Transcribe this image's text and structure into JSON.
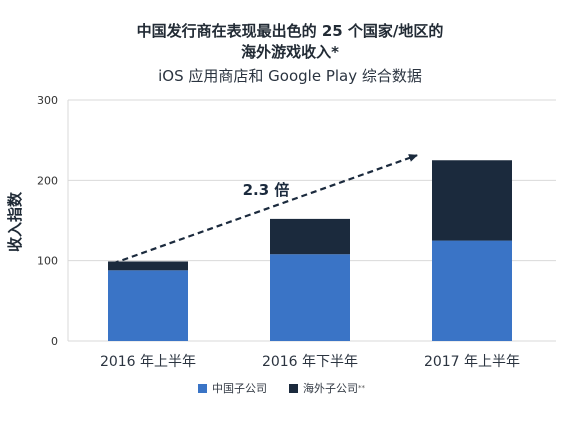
{
  "title_line1": "中国发行商在表现最出色的 25 个国家/地区的",
  "title_line2": "海外游戏收入*",
  "subtitle": "iOS 应用商店和 Google Play 综合数据",
  "annotation": "2.3 倍",
  "colors": {
    "domestic": "#3a74c6",
    "overseas": "#1b2a3d",
    "grid": "#d9d9d9",
    "arrow": "#1b2a3d"
  },
  "chart_data": {
    "type": "bar",
    "stacked": true,
    "categories": [
      "2016 年上半年",
      "2016 年下半年",
      "2017 年上半年"
    ],
    "series": [
      {
        "name": "中国子公司",
        "values": [
          88,
          108,
          125
        ]
      },
      {
        "name": "海外子公司**",
        "values": [
          11,
          44,
          100
        ]
      }
    ],
    "ylabel": "收入指数",
    "xlabel": "",
    "ylim": [
      0,
      300
    ],
    "yticks": [
      0,
      100,
      200,
      300
    ],
    "grid": true,
    "legend": "bottom",
    "annotation": {
      "text": "2.3 倍",
      "from_category": "2016 年上半年",
      "to_category": "2017 年上半年"
    }
  },
  "legend": {
    "domestic_label": "中国子公司",
    "overseas_label": "海外子公司",
    "overseas_sup": "**"
  }
}
